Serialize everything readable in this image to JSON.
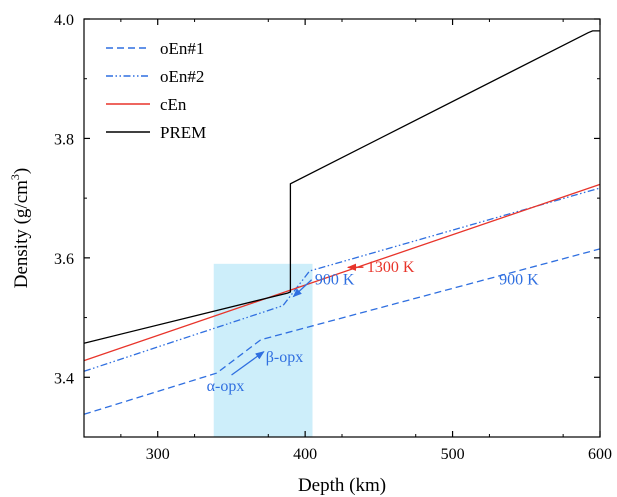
{
  "chart_data": {
    "type": "line",
    "xlabel": "Depth (km)",
    "ylabel_main": "Density (g/cm",
    "ylabel_sup": "3",
    "ylabel_close": ")",
    "xlim": [
      250,
      600
    ],
    "ylim": [
      3.3,
      4.0
    ],
    "xticks": [
      300,
      400,
      500,
      600
    ],
    "xtick_labels": [
      "300",
      "400",
      "500",
      "600"
    ],
    "yticks": [
      3.4,
      3.6,
      3.8,
      4.0
    ],
    "ytick_labels": [
      "3.4",
      "3.6",
      "3.8",
      "4.0"
    ],
    "grid": false,
    "legend_position": "top-left",
    "shaded_region": {
      "x": [
        338,
        405
      ],
      "y": [
        3.3,
        3.59
      ],
      "color": "#cdeefa"
    },
    "series": [
      {
        "name": "oEn#1",
        "color": "#2f6fe0",
        "dash": "dashed",
        "x": [
          250,
          340,
          370,
          600
        ],
        "y": [
          3.338,
          3.407,
          3.463,
          3.615
        ]
      },
      {
        "name": "oEn#2",
        "color": "#2f6fe0",
        "dash": "dashdotdot",
        "x": [
          250,
          385,
          403,
          600
        ],
        "y": [
          3.41,
          3.52,
          3.578,
          3.717
        ]
      },
      {
        "name": "cEn",
        "color": "#e8342a",
        "dash": "solid",
        "x": [
          250,
          600
        ],
        "y": [
          3.428,
          3.723
        ]
      },
      {
        "name": "PREM",
        "color": "#000000",
        "dash": "solid",
        "x": [
          250,
          388,
          390,
          390,
          592,
          595,
          600
        ],
        "y": [
          3.457,
          3.541,
          3.543,
          3.724,
          3.977,
          3.98,
          3.98
        ]
      }
    ],
    "annotations": [
      {
        "text": "1300 K",
        "color": "#e8342a",
        "x": 458,
        "y": 3.576,
        "arrow_to": [
          429,
          3.584
        ]
      },
      {
        "text": "900 K",
        "color": "#2f6fe0",
        "x": 420,
        "y": 3.555,
        "arrow_to": [
          392,
          3.535
        ]
      },
      {
        "text": "900 K",
        "color": "#2f6fe0",
        "x": 545,
        "y": 3.555
      },
      {
        "text": "β-opx",
        "color": "#2f6fe0",
        "x": 386,
        "y": 3.426
      },
      {
        "text": "α-opx",
        "color": "#2f6fe0",
        "x": 346,
        "y": 3.377,
        "arrow_to": [
          372,
          3.443
        ]
      }
    ]
  }
}
